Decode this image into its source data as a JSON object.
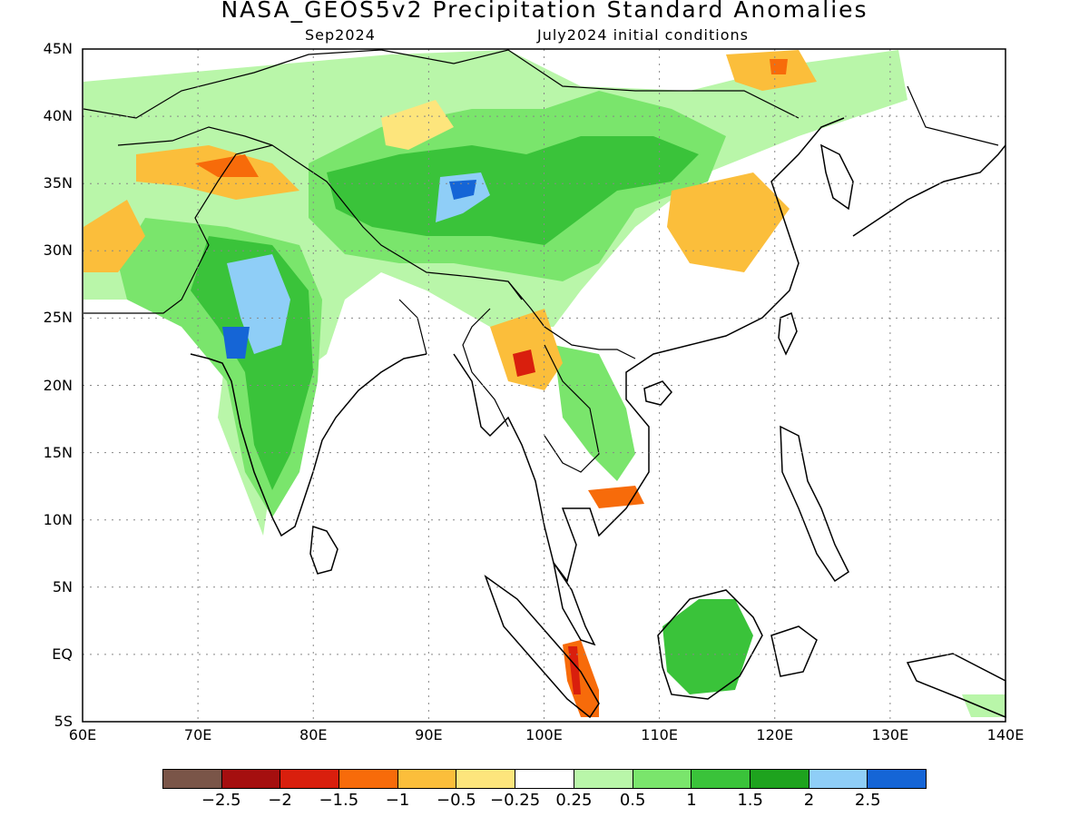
{
  "title": "NASA_GEOS5v2 Precipitation Standard Anomalies",
  "subtitle_left": "Sep2024",
  "subtitle_right": "July2024 initial conditions",
  "map": {
    "lon_range": [
      60,
      140
    ],
    "lat_range": [
      -5,
      45
    ],
    "lon_ticks": [
      "60E",
      "70E",
      "80E",
      "90E",
      "100E",
      "110E",
      "120E",
      "130E",
      "140E"
    ],
    "lat_ticks": [
      "45N",
      "40N",
      "35N",
      "30N",
      "25N",
      "20N",
      "15N",
      "10N",
      "5N",
      "EQ",
      "5S"
    ],
    "grid": "dotted"
  },
  "colorbar": {
    "colors": [
      "#7a5548",
      "#a50f0f",
      "#d91f0d",
      "#f76b0a",
      "#fbbe3b",
      "#fde57c",
      "#ffffff",
      "#b9f6a9",
      "#7ae56c",
      "#3ac33a",
      "#1ea31e",
      "#8fcef7",
      "#1565d6"
    ],
    "labels": [
      "−2.5",
      "−2",
      "−1.5",
      "−1",
      "−0.5",
      "−0.25",
      "0.25",
      "0.5",
      "1",
      "1.5",
      "2",
      "2.5"
    ]
  }
}
